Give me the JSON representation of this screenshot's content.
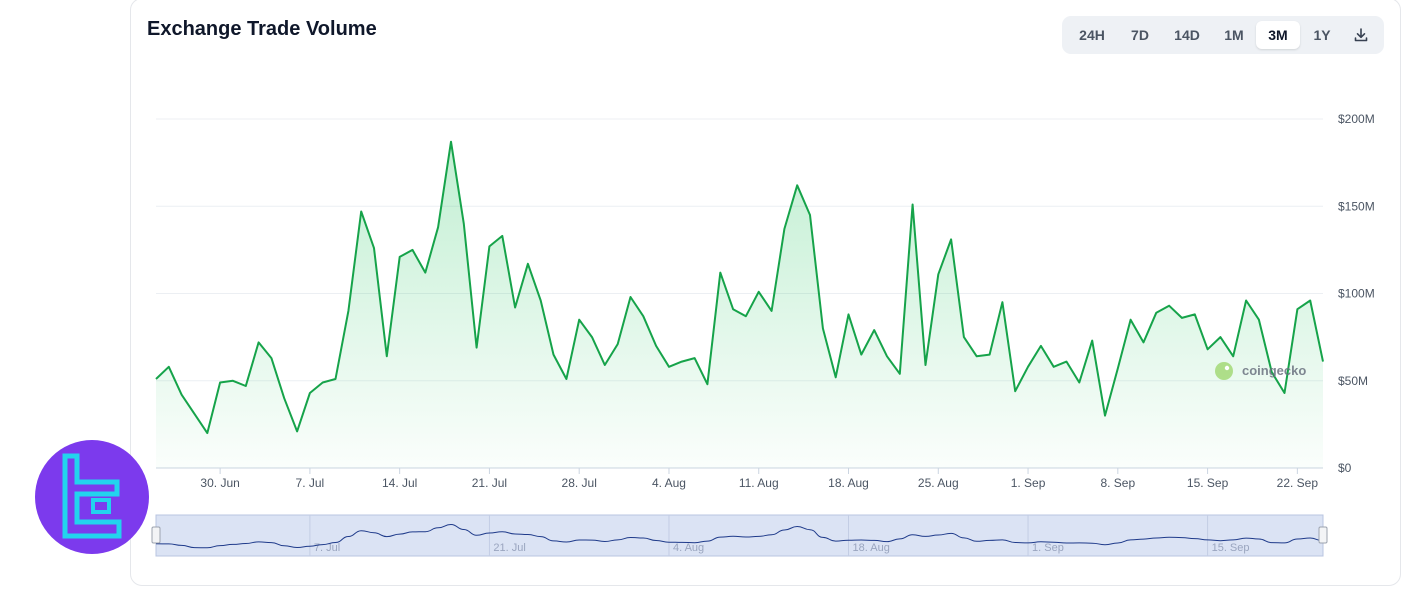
{
  "title": "Exchange Trade Volume",
  "ranges": [
    {
      "label": "24H",
      "active": false
    },
    {
      "label": "7D",
      "active": false
    },
    {
      "label": "14D",
      "active": false
    },
    {
      "label": "1M",
      "active": false
    },
    {
      "label": "3M",
      "active": true
    },
    {
      "label": "1Y",
      "active": false
    }
  ],
  "download_icon": "download-icon",
  "watermark": "coingecko",
  "colors": {
    "line": "#16a34a",
    "fill": "#22c55e",
    "navigator_line": "#1e3a8a",
    "navigator_bg": "#dbe3f4",
    "logo_bg": "#7c3aed",
    "logo_mark": "#22d3ee"
  },
  "chart_data": {
    "type": "area",
    "title": "Exchange Trade Volume",
    "xlabel": "",
    "ylabel": "",
    "x_range": [
      "2024-06-25",
      "2024-09-24"
    ],
    "ylim": [
      0,
      200
    ],
    "y_unit": "$M",
    "y_ticks": [
      {
        "value": 0,
        "label": "$0"
      },
      {
        "value": 50,
        "label": "$50M"
      },
      {
        "value": 100,
        "label": "$100M"
      },
      {
        "value": 150,
        "label": "$150M"
      },
      {
        "value": 200,
        "label": "$200M"
      }
    ],
    "x_ticks": [
      {
        "date": "2024-06-30",
        "label": "30. Jun"
      },
      {
        "date": "2024-07-07",
        "label": "7. Jul"
      },
      {
        "date": "2024-07-14",
        "label": "14. Jul"
      },
      {
        "date": "2024-07-21",
        "label": "21. Jul"
      },
      {
        "date": "2024-07-28",
        "label": "28. Jul"
      },
      {
        "date": "2024-08-04",
        "label": "4. Aug"
      },
      {
        "date": "2024-08-11",
        "label": "11. Aug"
      },
      {
        "date": "2024-08-18",
        "label": "18. Aug"
      },
      {
        "date": "2024-08-25",
        "label": "25. Aug"
      },
      {
        "date": "2024-09-01",
        "label": "1. Sep"
      },
      {
        "date": "2024-09-08",
        "label": "8. Sep"
      },
      {
        "date": "2024-09-15",
        "label": "15. Sep"
      },
      {
        "date": "2024-09-22",
        "label": "22. Sep"
      }
    ],
    "navigator_ticks": [
      {
        "date": "2024-07-07",
        "label": "7. Jul"
      },
      {
        "date": "2024-07-21",
        "label": "21. Jul"
      },
      {
        "date": "2024-08-04",
        "label": "4. Aug"
      },
      {
        "date": "2024-08-18",
        "label": "18. Aug"
      },
      {
        "date": "2024-09-01",
        "label": "1. Sep"
      },
      {
        "date": "2024-09-15",
        "label": "15. Sep"
      }
    ],
    "series": [
      {
        "values": [
          {
            "x": "2024-06-25",
            "y": 51
          },
          {
            "x": "2024-06-26",
            "y": 58
          },
          {
            "x": "2024-06-27",
            "y": 42
          },
          {
            "x": "2024-06-28",
            "y": 31
          },
          {
            "x": "2024-06-29",
            "y": 20
          },
          {
            "x": "2024-06-30",
            "y": 49
          },
          {
            "x": "2024-07-01",
            "y": 50
          },
          {
            "x": "2024-07-02",
            "y": 47
          },
          {
            "x": "2024-07-03",
            "y": 72
          },
          {
            "x": "2024-07-04",
            "y": 63
          },
          {
            "x": "2024-07-05",
            "y": 40
          },
          {
            "x": "2024-07-06",
            "y": 21
          },
          {
            "x": "2024-07-07",
            "y": 43
          },
          {
            "x": "2024-07-08",
            "y": 49
          },
          {
            "x": "2024-07-09",
            "y": 51
          },
          {
            "x": "2024-07-10",
            "y": 90
          },
          {
            "x": "2024-07-11",
            "y": 147
          },
          {
            "x": "2024-07-12",
            "y": 126
          },
          {
            "x": "2024-07-13",
            "y": 64
          },
          {
            "x": "2024-07-14",
            "y": 121
          },
          {
            "x": "2024-07-15",
            "y": 125
          },
          {
            "x": "2024-07-16",
            "y": 112
          },
          {
            "x": "2024-07-17",
            "y": 138
          },
          {
            "x": "2024-07-18",
            "y": 187
          },
          {
            "x": "2024-07-19",
            "y": 140
          },
          {
            "x": "2024-07-20",
            "y": 69
          },
          {
            "x": "2024-07-21",
            "y": 127
          },
          {
            "x": "2024-07-22",
            "y": 133
          },
          {
            "x": "2024-07-23",
            "y": 92
          },
          {
            "x": "2024-07-24",
            "y": 117
          },
          {
            "x": "2024-07-25",
            "y": 96
          },
          {
            "x": "2024-07-26",
            "y": 65
          },
          {
            "x": "2024-07-27",
            "y": 51
          },
          {
            "x": "2024-07-28",
            "y": 85
          },
          {
            "x": "2024-07-29",
            "y": 75
          },
          {
            "x": "2024-07-30",
            "y": 59
          },
          {
            "x": "2024-07-31",
            "y": 71
          },
          {
            "x": "2024-08-01",
            "y": 98
          },
          {
            "x": "2024-08-02",
            "y": 87
          },
          {
            "x": "2024-08-03",
            "y": 70
          },
          {
            "x": "2024-08-04",
            "y": 58
          },
          {
            "x": "2024-08-05",
            "y": 61
          },
          {
            "x": "2024-08-06",
            "y": 63
          },
          {
            "x": "2024-08-07",
            "y": 48
          },
          {
            "x": "2024-08-08",
            "y": 112
          },
          {
            "x": "2024-08-09",
            "y": 91
          },
          {
            "x": "2024-08-10",
            "y": 87
          },
          {
            "x": "2024-08-11",
            "y": 101
          },
          {
            "x": "2024-08-12",
            "y": 90
          },
          {
            "x": "2024-08-13",
            "y": 137
          },
          {
            "x": "2024-08-14",
            "y": 162
          },
          {
            "x": "2024-08-15",
            "y": 145
          },
          {
            "x": "2024-08-16",
            "y": 80
          },
          {
            "x": "2024-08-17",
            "y": 52
          },
          {
            "x": "2024-08-18",
            "y": 88
          },
          {
            "x": "2024-08-19",
            "y": 65
          },
          {
            "x": "2024-08-20",
            "y": 79
          },
          {
            "x": "2024-08-21",
            "y": 64
          },
          {
            "x": "2024-08-22",
            "y": 54
          },
          {
            "x": "2024-08-23",
            "y": 151
          },
          {
            "x": "2024-08-24",
            "y": 59
          },
          {
            "x": "2024-08-25",
            "y": 111
          },
          {
            "x": "2024-08-26",
            "y": 131
          },
          {
            "x": "2024-08-27",
            "y": 75
          },
          {
            "x": "2024-08-28",
            "y": 64
          },
          {
            "x": "2024-08-29",
            "y": 65
          },
          {
            "x": "2024-08-30",
            "y": 95
          },
          {
            "x": "2024-08-31",
            "y": 44
          },
          {
            "x": "2024-09-01",
            "y": 58
          },
          {
            "x": "2024-09-02",
            "y": 70
          },
          {
            "x": "2024-09-03",
            "y": 58
          },
          {
            "x": "2024-09-04",
            "y": 61
          },
          {
            "x": "2024-09-05",
            "y": 49
          },
          {
            "x": "2024-09-06",
            "y": 73
          },
          {
            "x": "2024-09-07",
            "y": 30
          },
          {
            "x": "2024-09-08",
            "y": 57
          },
          {
            "x": "2024-09-09",
            "y": 85
          },
          {
            "x": "2024-09-10",
            "y": 72
          },
          {
            "x": "2024-09-11",
            "y": 89
          },
          {
            "x": "2024-09-12",
            "y": 93
          },
          {
            "x": "2024-09-13",
            "y": 86
          },
          {
            "x": "2024-09-14",
            "y": 88
          },
          {
            "x": "2024-09-15",
            "y": 68
          },
          {
            "x": "2024-09-16",
            "y": 75
          },
          {
            "x": "2024-09-17",
            "y": 64
          },
          {
            "x": "2024-09-18",
            "y": 96
          },
          {
            "x": "2024-09-19",
            "y": 85
          },
          {
            "x": "2024-09-20",
            "y": 55
          },
          {
            "x": "2024-09-21",
            "y": 43
          },
          {
            "x": "2024-09-22",
            "y": 91
          },
          {
            "x": "2024-09-23",
            "y": 96
          },
          {
            "x": "2024-09-24",
            "y": 61
          }
        ]
      }
    ],
    "legend": "none",
    "grid": true
  }
}
